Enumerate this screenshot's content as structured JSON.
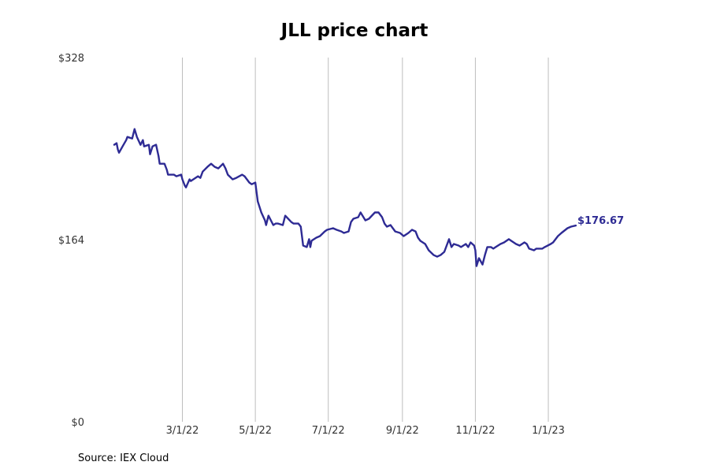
{
  "chart_data": {
    "type": "line",
    "title": "JLL price chart",
    "source": "Source: IEX Cloud",
    "ylim": [
      0,
      328
    ],
    "yticks": [
      {
        "value": 0,
        "label": "$0"
      },
      {
        "value": 164,
        "label": "$164"
      },
      {
        "value": 328,
        "label": "$328"
      }
    ],
    "xlim": [
      "2022-01-03",
      "2023-02-24"
    ],
    "xticks": [
      {
        "date": "2022-03-01",
        "label": "3/1/22"
      },
      {
        "date": "2022-05-01",
        "label": "5/1/22"
      },
      {
        "date": "2022-07-01",
        "label": "7/1/22"
      },
      {
        "date": "2022-09-01",
        "label": "9/1/22"
      },
      {
        "date": "2022-11-01",
        "label": "11/1/22"
      },
      {
        "date": "2023-01-01",
        "label": "1/1/23"
      }
    ],
    "grid": "vertical",
    "line_color": "#2e2b94",
    "last_value_label": "$176.67",
    "series": [
      {
        "values": [
          [
            "2022-01-03",
            249.5
          ],
          [
            "2022-01-05",
            250.9
          ],
          [
            "2022-01-06",
            245.2
          ],
          [
            "2022-01-07",
            242.3
          ],
          [
            "2022-01-10",
            248.0
          ],
          [
            "2022-01-13",
            253.7
          ],
          [
            "2022-01-14",
            256.5
          ],
          [
            "2022-01-18",
            255.1
          ],
          [
            "2022-01-20",
            263.6
          ],
          [
            "2022-01-22",
            256.5
          ],
          [
            "2022-01-25",
            249.4
          ],
          [
            "2022-01-27",
            253.7
          ],
          [
            "2022-01-28",
            248.0
          ],
          [
            "2022-02-01",
            249.4
          ],
          [
            "2022-02-02",
            240.9
          ],
          [
            "2022-02-04",
            248.0
          ],
          [
            "2022-02-07",
            249.5
          ],
          [
            "2022-02-09",
            239.5
          ],
          [
            "2022-02-10",
            232.4
          ],
          [
            "2022-02-14",
            232.4
          ],
          [
            "2022-02-16",
            226.8
          ],
          [
            "2022-02-17",
            222.5
          ],
          [
            "2022-02-22",
            222.5
          ],
          [
            "2022-02-24",
            221.1
          ],
          [
            "2022-02-28",
            222.6
          ],
          [
            "2022-03-01",
            218.3
          ],
          [
            "2022-03-03",
            212.6
          ],
          [
            "2022-03-04",
            211.1
          ],
          [
            "2022-03-07",
            218.3
          ],
          [
            "2022-03-08",
            216.8
          ],
          [
            "2022-03-14",
            221.1
          ],
          [
            "2022-03-16",
            219.6
          ],
          [
            "2022-03-18",
            225.3
          ],
          [
            "2022-03-22",
            229.6
          ],
          [
            "2022-03-25",
            232.4
          ],
          [
            "2022-03-28",
            229.6
          ],
          [
            "2022-03-31",
            228.2
          ],
          [
            "2022-04-04",
            232.4
          ],
          [
            "2022-04-06",
            228.2
          ],
          [
            "2022-04-08",
            222.5
          ],
          [
            "2022-04-12",
            218.3
          ],
          [
            "2022-04-15",
            219.6
          ],
          [
            "2022-04-20",
            222.5
          ],
          [
            "2022-04-22",
            221.1
          ],
          [
            "2022-04-26",
            215.4
          ],
          [
            "2022-04-28",
            213.9
          ],
          [
            "2022-05-01",
            215.4
          ],
          [
            "2022-05-03",
            198.4
          ],
          [
            "2022-05-06",
            188.5
          ],
          [
            "2022-05-09",
            181.4
          ],
          [
            "2022-05-10",
            177.1
          ],
          [
            "2022-05-12",
            185.6
          ],
          [
            "2022-05-16",
            177.1
          ],
          [
            "2022-05-18",
            178.5
          ],
          [
            "2022-05-20",
            178.5
          ],
          [
            "2022-05-24",
            177.1
          ],
          [
            "2022-05-26",
            185.6
          ],
          [
            "2022-05-31",
            179.9
          ],
          [
            "2022-06-02",
            178.5
          ],
          [
            "2022-06-06",
            178.5
          ],
          [
            "2022-06-08",
            175.7
          ],
          [
            "2022-06-10",
            158.7
          ],
          [
            "2022-06-13",
            157.3
          ],
          [
            "2022-06-15",
            164.4
          ],
          [
            "2022-06-16",
            157.3
          ],
          [
            "2022-06-17",
            163.0
          ],
          [
            "2022-06-21",
            165.8
          ],
          [
            "2022-06-24",
            167.2
          ],
          [
            "2022-06-28",
            171.4
          ],
          [
            "2022-06-30",
            172.9
          ],
          [
            "2022-07-05",
            174.3
          ],
          [
            "2022-07-08",
            172.9
          ],
          [
            "2022-07-12",
            171.4
          ],
          [
            "2022-07-14",
            170.0
          ],
          [
            "2022-07-18",
            171.4
          ],
          [
            "2022-07-20",
            179.9
          ],
          [
            "2022-07-22",
            182.8
          ],
          [
            "2022-07-26",
            184.2
          ],
          [
            "2022-07-28",
            188.5
          ],
          [
            "2022-08-01",
            181.4
          ],
          [
            "2022-08-04",
            182.8
          ],
          [
            "2022-08-09",
            188.5
          ],
          [
            "2022-08-12",
            188.5
          ],
          [
            "2022-08-15",
            184.2
          ],
          [
            "2022-08-17",
            178.5
          ],
          [
            "2022-08-19",
            175.7
          ],
          [
            "2022-08-22",
            177.1
          ],
          [
            "2022-08-26",
            171.4
          ],
          [
            "2022-08-30",
            170.0
          ],
          [
            "2022-09-02",
            167.2
          ],
          [
            "2022-09-06",
            170.0
          ],
          [
            "2022-09-09",
            172.9
          ],
          [
            "2022-09-12",
            171.4
          ],
          [
            "2022-09-14",
            165.8
          ],
          [
            "2022-09-16",
            162.9
          ],
          [
            "2022-09-20",
            160.1
          ],
          [
            "2022-09-23",
            154.4
          ],
          [
            "2022-09-27",
            150.2
          ],
          [
            "2022-09-30",
            148.7
          ],
          [
            "2022-10-03",
            150.2
          ],
          [
            "2022-10-06",
            153.0
          ],
          [
            "2022-10-10",
            164.4
          ],
          [
            "2022-10-12",
            157.3
          ],
          [
            "2022-10-14",
            160.1
          ],
          [
            "2022-10-18",
            158.7
          ],
          [
            "2022-10-20",
            157.3
          ],
          [
            "2022-10-24",
            160.1
          ],
          [
            "2022-10-26",
            157.3
          ],
          [
            "2022-10-28",
            161.5
          ],
          [
            "2022-10-31",
            158.7
          ],
          [
            "2022-11-01",
            154.4
          ],
          [
            "2022-11-02",
            140.2
          ],
          [
            "2022-11-04",
            147.3
          ],
          [
            "2022-11-07",
            141.6
          ],
          [
            "2022-11-09",
            150.2
          ],
          [
            "2022-11-11",
            157.3
          ],
          [
            "2022-11-14",
            157.3
          ],
          [
            "2022-11-16",
            155.9
          ],
          [
            "2022-11-18",
            157.3
          ],
          [
            "2022-11-22",
            160.1
          ],
          [
            "2022-11-25",
            161.5
          ],
          [
            "2022-11-29",
            164.4
          ],
          [
            "2022-12-01",
            162.9
          ],
          [
            "2022-12-05",
            160.1
          ],
          [
            "2022-12-08",
            158.7
          ],
          [
            "2022-12-12",
            161.5
          ],
          [
            "2022-12-14",
            160.1
          ],
          [
            "2022-12-16",
            155.9
          ],
          [
            "2022-12-20",
            154.4
          ],
          [
            "2022-12-22",
            155.9
          ],
          [
            "2022-12-27",
            155.9
          ],
          [
            "2022-12-29",
            157.3
          ],
          [
            "2023-01-03",
            160.1
          ],
          [
            "2023-01-05",
            161.5
          ],
          [
            "2023-01-09",
            167.2
          ],
          [
            "2023-01-12",
            170.0
          ],
          [
            "2023-01-17",
            174.3
          ],
          [
            "2023-01-20",
            175.7
          ],
          [
            "2023-01-24",
            176.7
          ]
        ]
      }
    ]
  }
}
